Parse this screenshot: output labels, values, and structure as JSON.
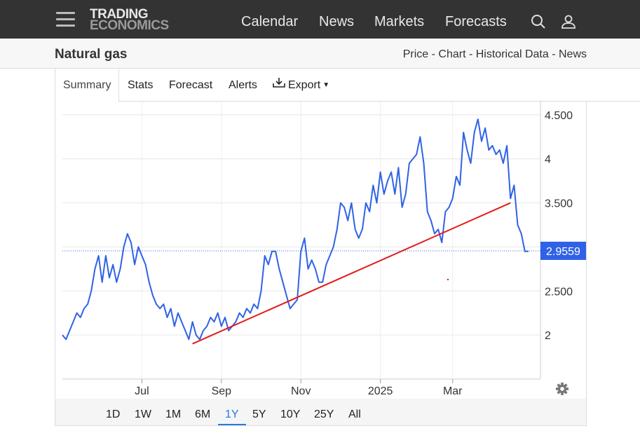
{
  "header": {
    "logo_line1": "TRADING",
    "logo_line2": "ECONOMICS",
    "nav": [
      "Calendar",
      "News",
      "Markets",
      "Forecasts"
    ],
    "icons": [
      "search-icon",
      "user-icon",
      "menu-icon"
    ]
  },
  "title_bar": {
    "title": "Natural gas",
    "links": "Price - Chart - Historical Data - News"
  },
  "tabs": {
    "summary": "Summary",
    "stats": "Stats",
    "forecast": "Forecast",
    "alerts": "Alerts",
    "export": "Export"
  },
  "range_buttons": [
    "1D",
    "1W",
    "1M",
    "6M",
    "1Y",
    "5Y",
    "10Y",
    "25Y",
    "All"
  ],
  "selected_range": "1Y",
  "colors": {
    "series": "#2f62e6",
    "trend": "#e31b1b",
    "price_badge": "#2f62e6",
    "active_range": "#2a78e4"
  },
  "chart_data": {
    "type": "line",
    "x_tick_labels": [
      "Jul",
      "Sep",
      "Nov",
      "2025",
      "Mar"
    ],
    "y_tick_labels": [
      "2",
      "2.500",
      "3",
      "3.500",
      "4",
      "4.500"
    ],
    "y_ticks": [
      2,
      2.5,
      3,
      3.5,
      4,
      4.5
    ],
    "ylim": [
      1.5,
      4.65
    ],
    "last_value": 2.9559,
    "last_value_label": "2.9559",
    "grid": true,
    "series": [
      {
        "values": [
          2.0,
          1.95,
          2.05,
          2.15,
          2.25,
          2.2,
          2.3,
          2.35,
          2.5,
          2.75,
          2.9,
          2.6,
          2.9,
          2.65,
          2.8,
          2.6,
          2.75,
          3.0,
          3.15,
          3.05,
          2.8,
          3.0,
          2.9,
          2.8,
          2.6,
          2.45,
          2.35,
          2.3,
          2.35,
          2.2,
          2.3,
          2.1,
          2.25,
          2.15,
          2.05,
          1.95,
          2.15,
          2.0,
          1.95,
          2.05,
          2.1,
          2.2,
          2.15,
          2.25,
          2.1,
          2.2,
          2.05,
          2.1,
          2.15,
          2.25,
          2.2,
          2.3,
          2.25,
          2.35,
          2.3,
          2.5,
          2.9,
          2.8,
          2.95,
          2.95,
          2.75,
          2.6,
          2.45,
          2.3,
          2.35,
          2.4,
          2.95,
          3.1,
          2.75,
          2.85,
          2.75,
          2.6,
          2.6,
          2.8,
          2.9,
          3.0,
          3.2,
          3.5,
          3.45,
          3.3,
          3.5,
          3.2,
          3.1,
          3.2,
          3.5,
          3.4,
          3.7,
          3.5,
          3.85,
          3.6,
          3.75,
          3.85,
          3.6,
          3.9,
          3.45,
          3.6,
          3.95,
          4.0,
          4.05,
          4.25,
          3.95,
          3.4,
          3.3,
          3.15,
          3.2,
          3.05,
          3.4,
          3.45,
          3.55,
          3.8,
          3.7,
          4.3,
          4.1,
          3.95,
          4.3,
          4.45,
          4.2,
          4.35,
          4.1,
          4.15,
          4.05,
          4.1,
          3.95,
          4.15,
          3.55,
          3.7,
          3.25,
          3.15,
          2.95,
          2.95
        ]
      }
    ],
    "trend_line": {
      "start": {
        "index": 36,
        "value": 1.9
      },
      "end": {
        "index": 124,
        "value": 3.5
      }
    }
  }
}
